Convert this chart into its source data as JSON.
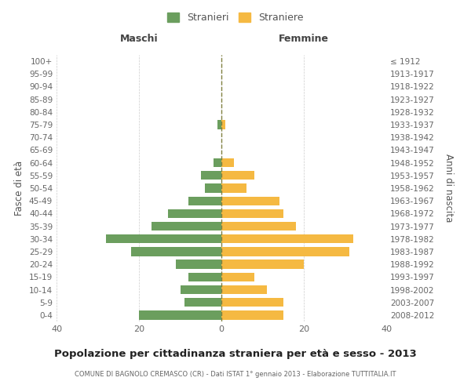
{
  "age_groups": [
    "0-4",
    "5-9",
    "10-14",
    "15-19",
    "20-24",
    "25-29",
    "30-34",
    "35-39",
    "40-44",
    "45-49",
    "50-54",
    "55-59",
    "60-64",
    "65-69",
    "70-74",
    "75-79",
    "80-84",
    "85-89",
    "90-94",
    "95-99",
    "100+"
  ],
  "birth_years": [
    "2008-2012",
    "2003-2007",
    "1998-2002",
    "1993-1997",
    "1988-1992",
    "1983-1987",
    "1978-1982",
    "1973-1977",
    "1968-1972",
    "1963-1967",
    "1958-1962",
    "1953-1957",
    "1948-1952",
    "1943-1947",
    "1938-1942",
    "1933-1937",
    "1928-1932",
    "1923-1927",
    "1918-1922",
    "1913-1917",
    "≤ 1912"
  ],
  "maschi": [
    20,
    9,
    10,
    8,
    11,
    22,
    28,
    17,
    13,
    8,
    4,
    5,
    2,
    0,
    0,
    1,
    0,
    0,
    0,
    0,
    0
  ],
  "femmine": [
    15,
    15,
    11,
    8,
    20,
    31,
    32,
    18,
    15,
    14,
    6,
    8,
    3,
    0,
    0,
    1,
    0,
    0,
    0,
    0,
    0
  ],
  "maschi_color": "#6b9e5e",
  "femmine_color": "#f5b942",
  "center_line_color": "#808040",
  "grid_color": "#cccccc",
  "bg_color": "#ffffff",
  "title": "Popolazione per cittadinanza straniera per età e sesso - 2013",
  "subtitle": "COMUNE DI BAGNOLO CREMASCO (CR) - Dati ISTAT 1° gennaio 2013 - Elaborazione TUTTITALIA.IT",
  "xlabel_left": "Maschi",
  "xlabel_right": "Femmine",
  "ylabel_left": "Fasce di età",
  "ylabel_right": "Anni di nascita",
  "legend_stranieri": "Stranieri",
  "legend_straniere": "Straniere",
  "xlim": 40
}
